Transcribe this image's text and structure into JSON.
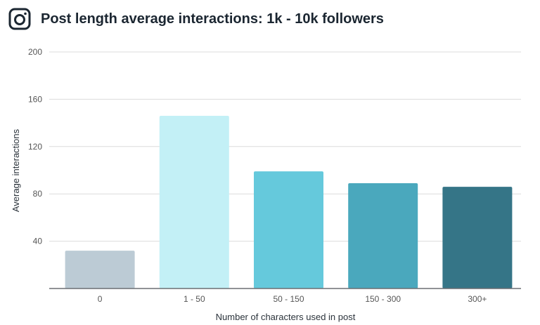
{
  "header": {
    "icon": "instagram-icon",
    "title": "Post length average interactions: 1k - 10k followers"
  },
  "chart_data": {
    "type": "bar",
    "title": "Post length average interactions: 1k - 10k followers",
    "xlabel": "Number of characters used in post",
    "ylabel": "Average interactions",
    "categories": [
      "0",
      "1 - 50",
      "50 - 150",
      "150 - 300",
      "300+"
    ],
    "values": [
      32,
      146,
      99,
      89,
      86
    ],
    "colors": [
      "#bccbd5",
      "#c3f0f6",
      "#65c9dc",
      "#4aa8bd",
      "#357587"
    ],
    "ylim": [
      0,
      200
    ],
    "yticks": [
      40,
      80,
      120,
      160,
      200
    ],
    "ytick_labels": [
      "40",
      "80",
      "120",
      "160",
      "200"
    ],
    "grid": true,
    "legend": "none"
  }
}
